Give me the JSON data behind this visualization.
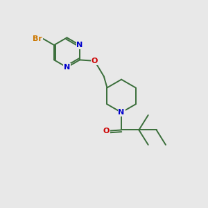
{
  "background_color": "#e8e8e8",
  "bond_color": "#3a6e3a",
  "atom_colors": {
    "Br": "#cc7700",
    "N": "#0000cc",
    "O": "#cc0000",
    "C": "#3a6e3a"
  },
  "figsize": [
    3.0,
    3.0
  ],
  "dpi": 100,
  "lw": 1.4,
  "fontsize": 8.0
}
